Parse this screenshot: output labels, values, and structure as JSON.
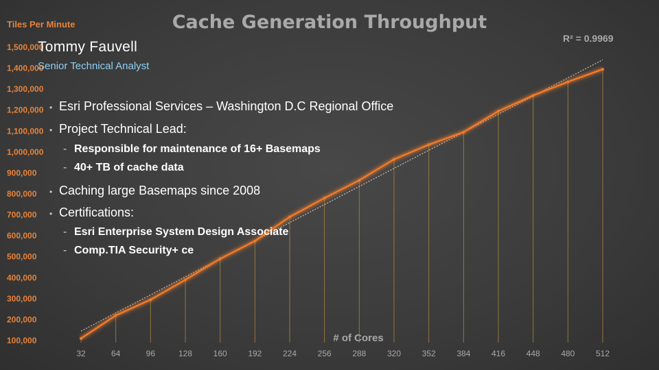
{
  "presenter": {
    "name": "Tommy Fauvell",
    "role": "Senior Technical Analyst"
  },
  "bullets": [
    {
      "text": "Esri Professional Services – Washington D.C Regional Office"
    },
    {
      "text": "Project Technical Lead:"
    },
    {
      "text": "Caching large Basemaps since 2008"
    },
    {
      "text": "Certifications:"
    }
  ],
  "sub_bullets": {
    "lead": [
      "Responsible for maintenance of 16+ Basemaps",
      "40+ TB of cache data"
    ],
    "certs": [
      "Esri Enterprise System Design Associate",
      "Comp.TIA Security+ ce"
    ]
  },
  "colors": {
    "accent": "#f07b2a",
    "tick_text": "#e8833a",
    "background": "#3b3b3b"
  },
  "chart_data": {
    "type": "line",
    "title": "Cache Generation Throughput",
    "ylabel": "Tiles Per Minute",
    "xlabel": "# of Cores",
    "annotation": "R² = 0.9969",
    "x": [
      32,
      64,
      96,
      128,
      160,
      192,
      224,
      256,
      288,
      320,
      352,
      384,
      416,
      448,
      480,
      512
    ],
    "y_ticks": [
      "100,000",
      "200,000",
      "300,000",
      "400,000",
      "500,000",
      "600,000",
      "700,000",
      "800,000",
      "900,000",
      "1,000,000",
      "1,100,000",
      "1,200,000",
      "1,300,000",
      "1,400,000",
      "1,500,000"
    ],
    "series": [
      {
        "values": [
          110000,
          220000,
          295000,
          390000,
          490000,
          575000,
          690000,
          780000,
          865000,
          965000,
          1035000,
          1095000,
          1195000,
          1270000,
          1335000,
          1395000
        ]
      }
    ],
    "trendline": {
      "x": [
        32,
        512
      ],
      "y": [
        145000,
        1440000
      ],
      "style": "dotted"
    },
    "ylim": [
      100000,
      1500000
    ],
    "grid": false,
    "drop_lines": true
  }
}
